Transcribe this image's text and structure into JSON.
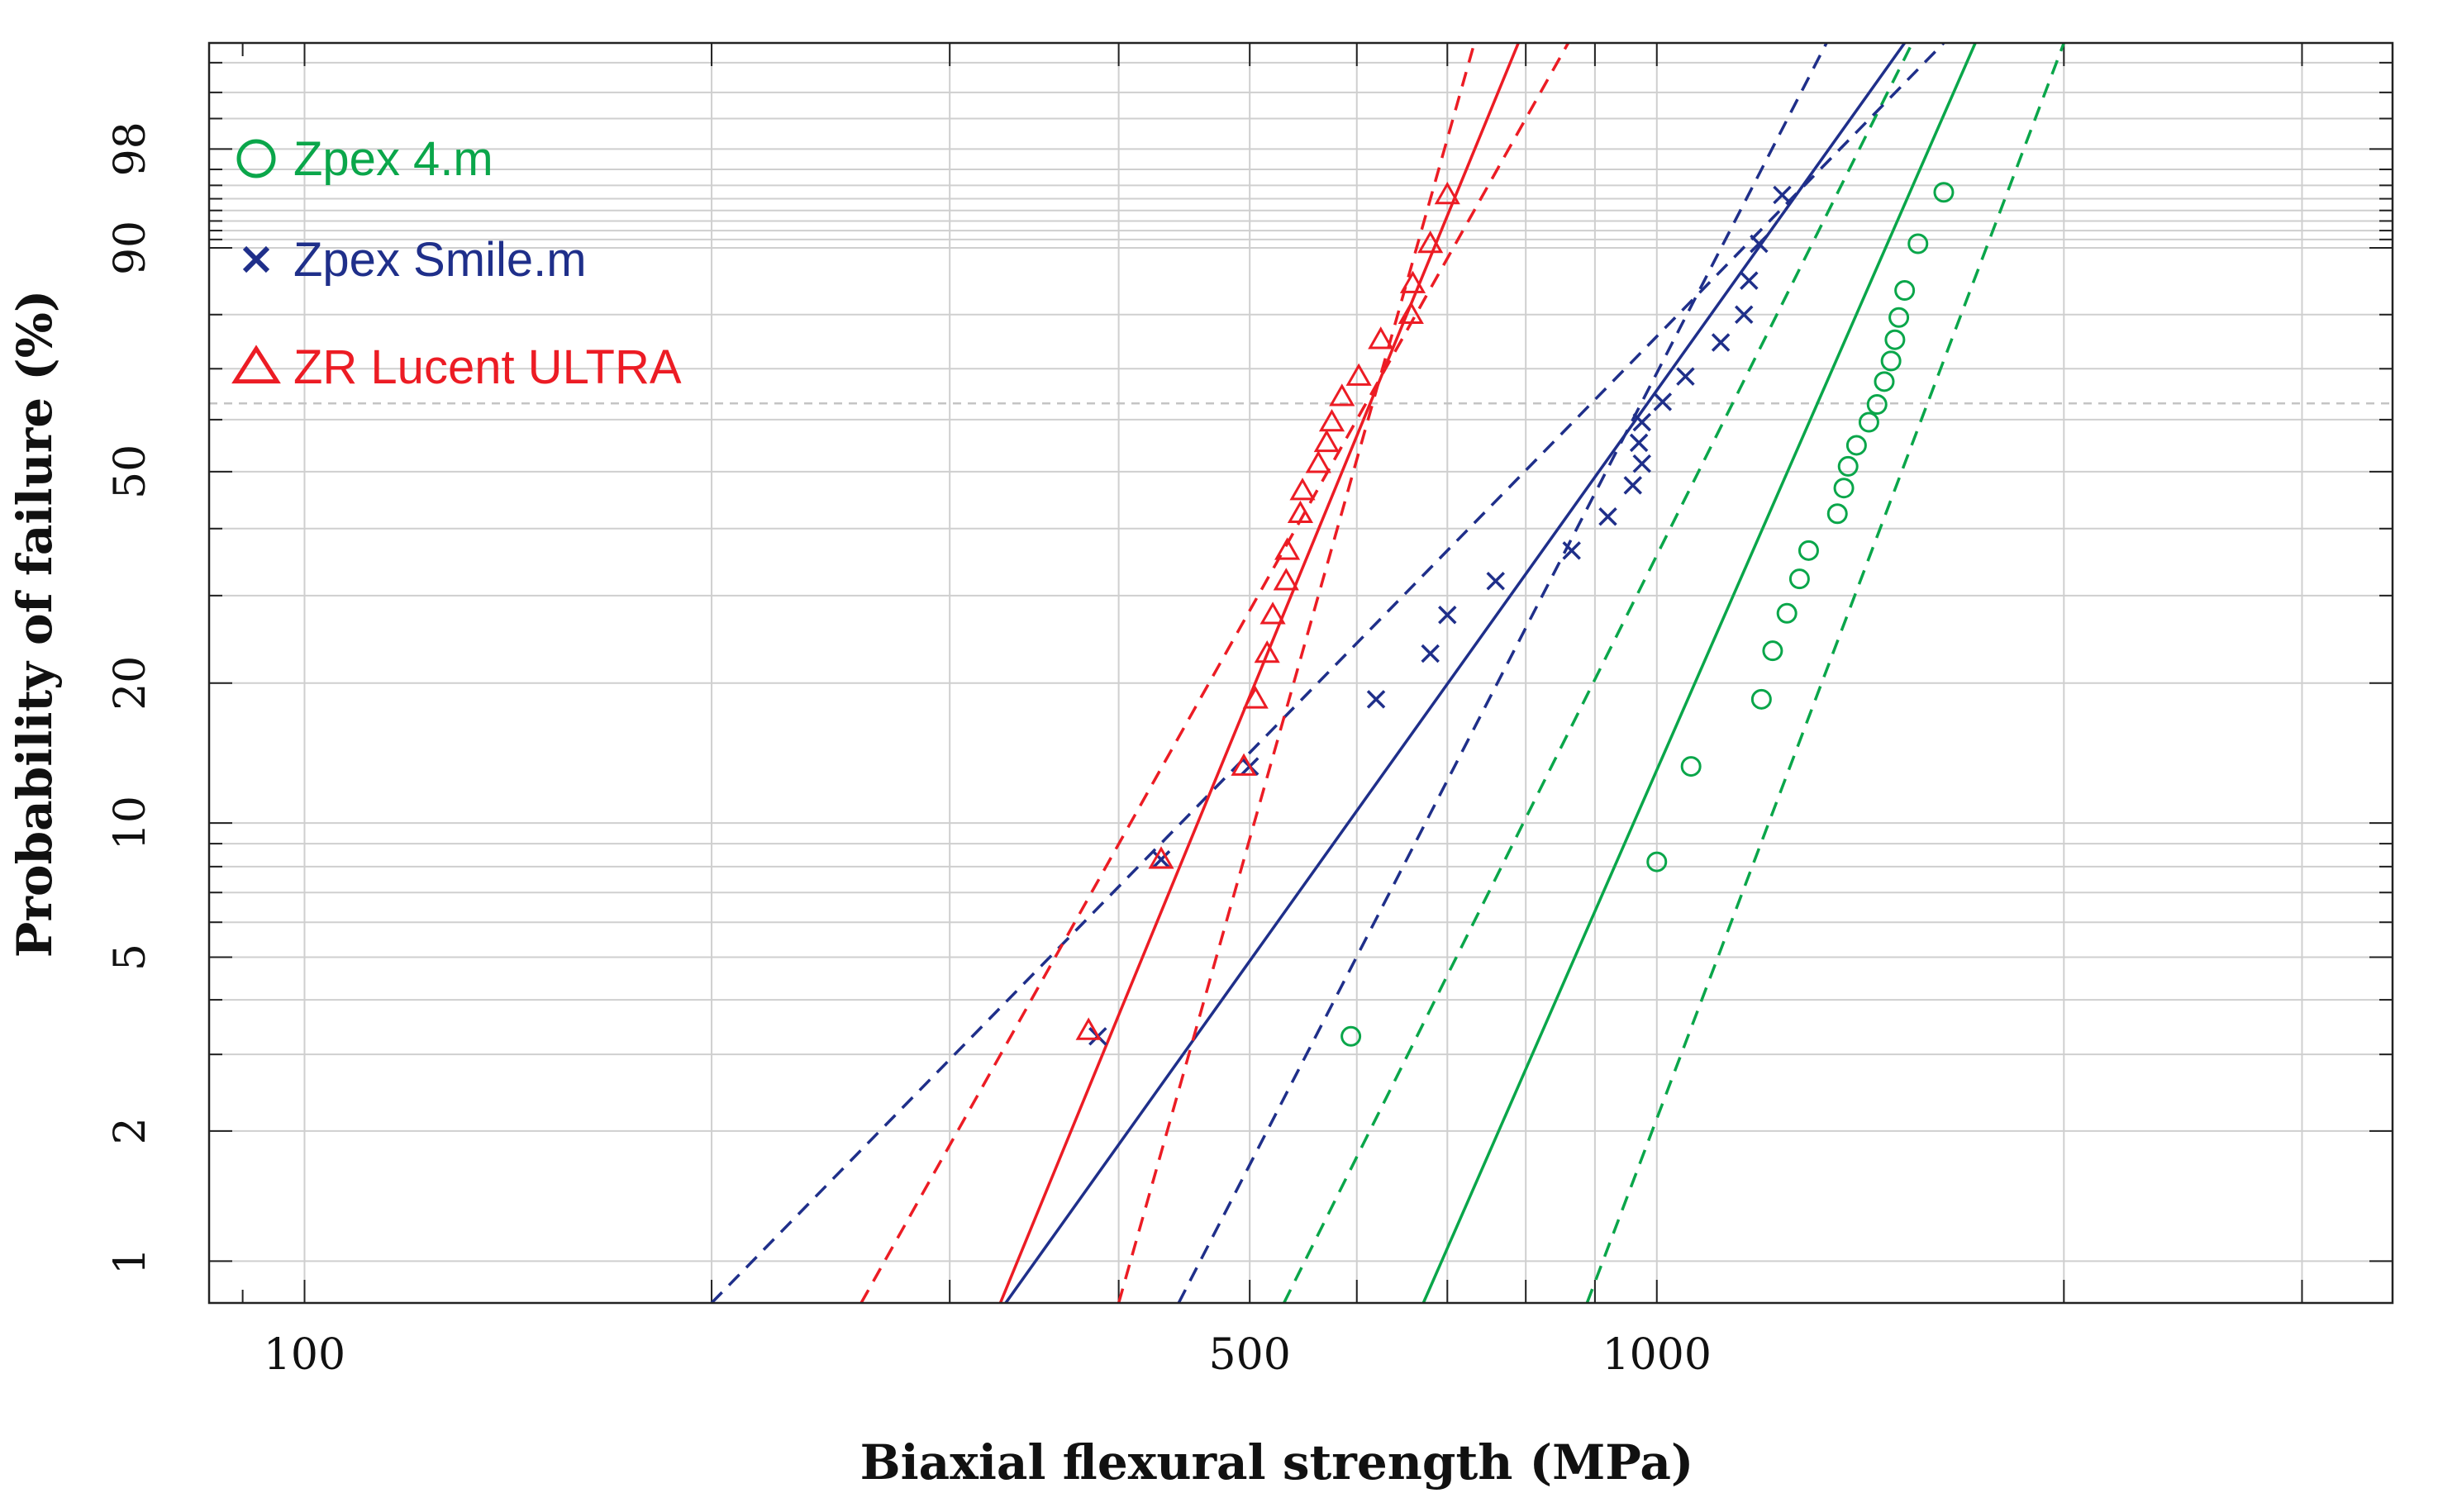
{
  "chart_data": {
    "type": "scatter",
    "title": "",
    "xlabel": "Biaxial flexural strength (MPa)",
    "ylabel": "Probability of failure (%)",
    "xscale": "log",
    "yscale": "weibull",
    "xlim": [
      85,
      3500
    ],
    "ylim": [
      0.8,
      99.9
    ],
    "x_tick_labels": [
      {
        "value": 100,
        "label": "100"
      },
      {
        "value": 500,
        "label": "500"
      },
      {
        "value": 1000,
        "label": "1000"
      }
    ],
    "y_tick_labels": [
      {
        "value": 1,
        "label": "1"
      },
      {
        "value": 2,
        "label": "2"
      },
      {
        "value": 5,
        "label": "5"
      },
      {
        "value": 10,
        "label": "10"
      },
      {
        "value": 20,
        "label": "20"
      },
      {
        "value": 50,
        "label": "50"
      },
      {
        "value": 90,
        "label": "90"
      },
      {
        "value": 98,
        "label": "98"
      }
    ],
    "reference_line_y": 63.2,
    "legend_position": "top-left",
    "series": [
      {
        "name": "Zpex 4.m",
        "marker": "circle",
        "color": "#0aa64a",
        "points": [
          [
            594,
            3.3
          ],
          [
            1000,
            8.2
          ],
          [
            1060,
            13.3
          ],
          [
            1195,
            18.5
          ],
          [
            1218,
            23.3
          ],
          [
            1248,
            27.7
          ],
          [
            1275,
            32.3
          ],
          [
            1295,
            36.5
          ],
          [
            1360,
            42.5
          ],
          [
            1375,
            47
          ],
          [
            1385,
            51
          ],
          [
            1405,
            55
          ],
          [
            1435,
            59.5
          ],
          [
            1455,
            63
          ],
          [
            1473,
            67.5
          ],
          [
            1490,
            71.5
          ],
          [
            1500,
            75.5
          ],
          [
            1510,
            79.5
          ],
          [
            1525,
            84
          ],
          [
            1560,
            90.5
          ],
          [
            1630,
            95.5
          ]
        ],
        "fit_line": [
          [
            672,
            0.8
          ],
          [
            1720,
            99.9
          ]
        ],
        "ci_lower": [
          [
            888,
            0.8
          ],
          [
            2000,
            99.9
          ]
        ],
        "ci_upper": [
          [
            530,
            0.8
          ],
          [
            1545,
            99.9
          ]
        ]
      },
      {
        "name": "Zpex Smile.m",
        "marker": "x",
        "color": "#1f2f8a",
        "points": [
          [
            386,
            3.3
          ],
          [
            430,
            8.3
          ],
          [
            500,
            13.3
          ],
          [
            620,
            18.5
          ],
          [
            680,
            23
          ],
          [
            700,
            27.5
          ],
          [
            760,
            32
          ],
          [
            865,
            36.5
          ],
          [
            920,
            42
          ],
          [
            960,
            47.5
          ],
          [
            975,
            51.5
          ],
          [
            970,
            55.5
          ],
          [
            975,
            59.5
          ],
          [
            1010,
            63.5
          ],
          [
            1050,
            68.5
          ],
          [
            1115,
            75
          ],
          [
            1160,
            80
          ],
          [
            1170,
            85.5
          ],
          [
            1190,
            90.5
          ],
          [
            1238,
            95.3
          ]
        ],
        "fit_line": [
          [
            330,
            0.8
          ],
          [
            1525,
            99.9
          ]
        ],
        "ci_lower": [
          [
            200,
            0.8
          ],
          [
            1630,
            99.9
          ]
        ],
        "ci_upper": [
          [
            443,
            0.8
          ],
          [
            1335,
            99.9
          ]
        ]
      },
      {
        "name": "ZR Lucent ULTRA",
        "marker": "triangle",
        "color": "#ec1c24",
        "points": [
          [
            380,
            3.4
          ],
          [
            430,
            8.3
          ],
          [
            495,
            13.3
          ],
          [
            505,
            18.5
          ],
          [
            515,
            23
          ],
          [
            520,
            27.5
          ],
          [
            532,
            32
          ],
          [
            533,
            36.5
          ],
          [
            545,
            42.5
          ],
          [
            547,
            46.5
          ],
          [
            562,
            51.5
          ],
          [
            570,
            55.5
          ],
          [
            575,
            59.5
          ],
          [
            585,
            64.5
          ],
          [
            602,
            68.5
          ],
          [
            625,
            75.5
          ],
          [
            658,
            80
          ],
          [
            660,
            85
          ],
          [
            680,
            90.5
          ],
          [
            700,
            95.3
          ]
        ],
        "fit_line": [
          [
            327,
            0.8
          ],
          [
            790,
            99.9
          ]
        ],
        "ci_lower": [
          [
            258,
            0.8
          ],
          [
            860,
            99.9
          ]
        ],
        "ci_upper": [
          [
            400,
            0.8
          ],
          [
            733,
            99.9
          ]
        ]
      }
    ]
  }
}
